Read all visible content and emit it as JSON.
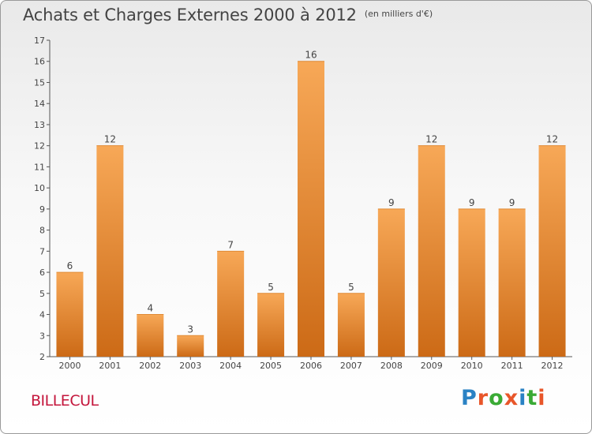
{
  "header": {
    "title": "Achats et Charges Externes 2000 à 2012",
    "subtitle": "(en milliers d'€)"
  },
  "commune": "BILLECUL",
  "logo": {
    "text": "Proxiti",
    "letter_colors": [
      "#2a82c4",
      "#e8562a",
      "#3aaa35",
      "#e8562a",
      "#2a82c4",
      "#3aaa35",
      "#e8562a"
    ]
  },
  "colors": {
    "bar_top": "#f7a857",
    "bar_bottom": "#cc6a16",
    "axis": "#555555",
    "label": "#444444"
  },
  "chart_data": {
    "type": "bar",
    "title": "Achats et Charges Externes 2000 à 2012",
    "subtitle": "(en milliers d'€)",
    "categories": [
      "2000",
      "2001",
      "2002",
      "2003",
      "2004",
      "2005",
      "2006",
      "2007",
      "2008",
      "2009",
      "2010",
      "2011",
      "2012"
    ],
    "values": [
      6,
      12,
      4,
      3,
      7,
      5,
      16,
      5,
      9,
      12,
      9,
      9,
      12
    ],
    "ylim": [
      2,
      17
    ],
    "yticks": [
      2,
      3,
      4,
      5,
      6,
      7,
      8,
      9,
      10,
      11,
      12,
      13,
      14,
      15,
      16,
      17
    ],
    "xlabel": "",
    "ylabel": "",
    "grid": false,
    "data_labels": true
  }
}
